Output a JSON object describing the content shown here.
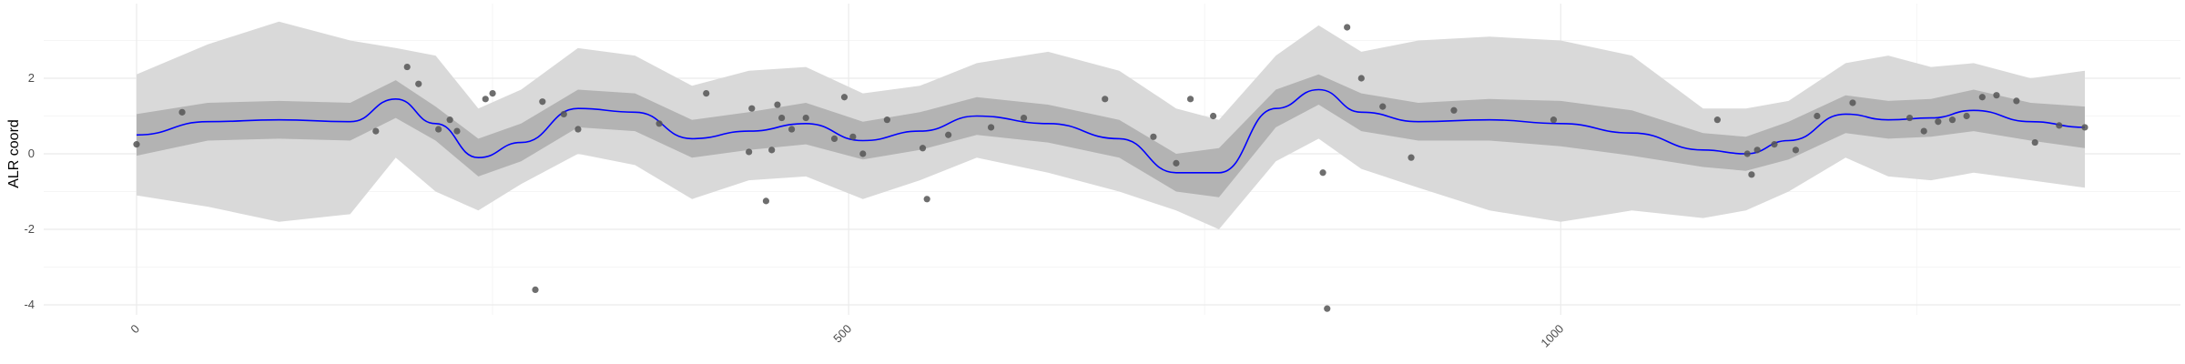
{
  "chart_data": {
    "type": "line",
    "title": "",
    "xlabel": "",
    "ylabel": "ALR coord",
    "xlim": [
      -60,
      1430
    ],
    "ylim": [
      -4.3,
      4.1
    ],
    "x_ticks": [
      0,
      500,
      1000
    ],
    "x_tick_labels": [
      "0",
      "500",
      "1000"
    ],
    "y_ticks": [
      -4,
      -2,
      0,
      2
    ],
    "y_tick_labels": [
      "-4",
      "-2",
      "0",
      "2"
    ],
    "grid": true,
    "legend": "none",
    "colors": {
      "mean_line": "#0000ff",
      "inner_band": "#b3b3b3",
      "outer_band": "#d9d9d9",
      "points": "#555555",
      "grid_major": "#ebebeb",
      "grid_minor": "#f5f5f5"
    },
    "series": [
      {
        "type": "line",
        "x": [
          0,
          50,
          100,
          150,
          182,
          210,
          240,
          270,
          310,
          350,
          390,
          430,
          470,
          510,
          550,
          590,
          640,
          690,
          730,
          760,
          800,
          830,
          860,
          900,
          950,
          1000,
          1050,
          1100,
          1130,
          1160,
          1200,
          1230,
          1260,
          1290,
          1330,
          1368
        ],
        "y": [
          0.5,
          0.85,
          0.9,
          0.85,
          1.45,
          0.8,
          -0.1,
          0.3,
          1.2,
          1.1,
          0.4,
          0.6,
          0.8,
          0.35,
          0.6,
          1.0,
          0.8,
          0.4,
          -0.5,
          -0.5,
          1.2,
          1.7,
          1.1,
          0.85,
          0.9,
          0.8,
          0.55,
          0.1,
          0.0,
          0.35,
          1.05,
          0.9,
          0.95,
          1.15,
          0.85,
          0.7
        ]
      },
      {
        "type": "band",
        "x": [
          0,
          50,
          100,
          150,
          182,
          210,
          240,
          270,
          310,
          350,
          390,
          430,
          470,
          510,
          550,
          590,
          640,
          690,
          730,
          760,
          800,
          830,
          860,
          900,
          950,
          1000,
          1050,
          1100,
          1130,
          1160,
          1200,
          1230,
          1260,
          1290,
          1330,
          1368
        ],
        "lower": [
          -0.05,
          0.35,
          0.4,
          0.35,
          0.95,
          0.35,
          -0.6,
          -0.2,
          0.7,
          0.6,
          -0.1,
          0.1,
          0.25,
          -0.15,
          0.1,
          0.5,
          0.3,
          -0.1,
          -1.0,
          -1.15,
          0.7,
          1.3,
          0.6,
          0.35,
          0.35,
          0.2,
          -0.05,
          -0.35,
          -0.45,
          -0.15,
          0.55,
          0.4,
          0.45,
          0.6,
          0.35,
          0.15
        ],
        "upper": [
          1.05,
          1.35,
          1.4,
          1.35,
          1.95,
          1.25,
          0.4,
          0.8,
          1.7,
          1.6,
          0.9,
          1.1,
          1.35,
          0.85,
          1.1,
          1.5,
          1.3,
          0.9,
          0.0,
          0.15,
          1.7,
          2.1,
          1.6,
          1.35,
          1.45,
          1.4,
          1.15,
          0.55,
          0.45,
          0.85,
          1.55,
          1.4,
          1.45,
          1.7,
          1.35,
          1.25
        ]
      },
      {
        "type": "band",
        "x": [
          0,
          50,
          100,
          150,
          182,
          210,
          240,
          270,
          310,
          350,
          390,
          430,
          470,
          510,
          550,
          590,
          640,
          690,
          730,
          760,
          800,
          830,
          860,
          900,
          950,
          1000,
          1050,
          1100,
          1130,
          1160,
          1200,
          1230,
          1260,
          1290,
          1330,
          1368
        ],
        "lower": [
          -1.1,
          -1.4,
          -1.8,
          -1.6,
          -0.1,
          -1.0,
          -1.5,
          -0.8,
          0.0,
          -0.3,
          -1.2,
          -0.7,
          -0.6,
          -1.2,
          -0.7,
          -0.1,
          -0.5,
          -1.0,
          -1.5,
          -2.0,
          -0.2,
          0.4,
          -0.4,
          -0.9,
          -1.5,
          -1.8,
          -1.5,
          -1.7,
          -1.5,
          -1.0,
          -0.1,
          -0.6,
          -0.7,
          -0.5,
          -0.7,
          -0.9
        ],
        "upper": [
          2.1,
          2.9,
          3.5,
          3.0,
          2.8,
          2.6,
          1.2,
          1.7,
          2.8,
          2.6,
          1.8,
          2.2,
          2.3,
          1.6,
          1.8,
          2.4,
          2.7,
          2.2,
          1.2,
          0.9,
          2.6,
          3.4,
          2.7,
          3.0,
          3.1,
          3.0,
          2.6,
          1.2,
          1.2,
          1.4,
          2.4,
          2.6,
          2.3,
          2.4,
          2.0,
          2.2
        ]
      },
      {
        "type": "scatter",
        "x": [
          0,
          32,
          168,
          190,
          198,
          212,
          220,
          225,
          245,
          250,
          280,
          285,
          300,
          310,
          367,
          400,
          430,
          432,
          442,
          446,
          450,
          453,
          460,
          470,
          490,
          497,
          503,
          510,
          527,
          552,
          555,
          570,
          600,
          623,
          680,
          714,
          730,
          740,
          756,
          833,
          836,
          850,
          860,
          875,
          895,
          925,
          995,
          1110,
          1131,
          1134,
          1138,
          1150,
          1165,
          1180,
          1205,
          1245,
          1255,
          1265,
          1275,
          1285,
          1296,
          1306,
          1320,
          1333,
          1350,
          1368
        ],
        "y": [
          0.25,
          1.1,
          0.6,
          2.3,
          1.85,
          0.65,
          0.9,
          0.6,
          1.45,
          1.6,
          -3.6,
          1.38,
          1.05,
          0.65,
          0.8,
          1.6,
          0.05,
          1.2,
          -1.25,
          0.1,
          1.3,
          0.95,
          0.65,
          0.95,
          0.4,
          1.5,
          0.45,
          0.0,
          0.9,
          0.15,
          -1.2,
          0.5,
          0.7,
          0.95,
          1.45,
          0.45,
          -0.25,
          1.45,
          1.0,
          -0.5,
          -4.1,
          3.35,
          2.0,
          1.25,
          -0.1,
          1.15,
          0.9,
          0.9,
          0.0,
          -0.55,
          0.1,
          0.25,
          0.1,
          1.0,
          1.35,
          0.95,
          0.6,
          0.85,
          0.9,
          1.0,
          1.5,
          1.55,
          1.4,
          0.3,
          0.75,
          0.7
        ]
      }
    ]
  }
}
